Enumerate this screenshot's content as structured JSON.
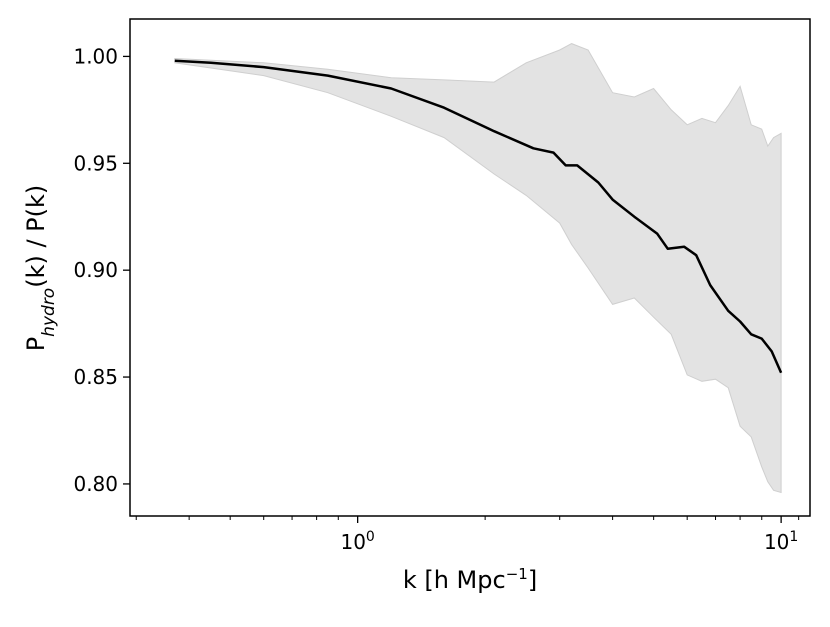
{
  "chart_data": {
    "type": "line",
    "x_scale": "log",
    "xlim": [
      0.29,
      11.7
    ],
    "ylim": [
      0.785,
      1.0175
    ],
    "xlabel": {
      "main": "k [h Mpc",
      "sup": "−1",
      "close": "]"
    },
    "ylabel": {
      "pre": "P",
      "sub": "hydro",
      "post": "(k) / P(k)"
    },
    "x_ticks": [
      {
        "value": 1,
        "base": "10",
        "exp": "0"
      },
      {
        "value": 10,
        "base": "10",
        "exp": "1"
      }
    ],
    "y_ticks": [
      {
        "value": 0.8,
        "label": "0.80"
      },
      {
        "value": 0.85,
        "label": "0.85"
      },
      {
        "value": 0.9,
        "label": "0.90"
      },
      {
        "value": 0.95,
        "label": "0.95"
      },
      {
        "value": 1.0,
        "label": "1.00"
      }
    ],
    "grid": false,
    "line_color": "#000000",
    "band_color": "#e3e3e3",
    "series": [
      {
        "x": [
          0.37,
          0.45,
          0.6,
          0.85,
          1.2,
          1.6,
          2.1,
          2.6,
          2.9,
          3.1,
          3.3,
          3.7,
          4.0,
          4.5,
          5.1,
          5.4,
          5.9,
          6.3,
          6.8,
          7.5,
          8.0,
          8.5,
          9.0,
          9.5,
          10.0
        ],
        "y": [
          0.998,
          0.997,
          0.995,
          0.991,
          0.985,
          0.976,
          0.965,
          0.957,
          0.955,
          0.949,
          0.949,
          0.941,
          0.933,
          0.925,
          0.917,
          0.91,
          0.911,
          0.907,
          0.893,
          0.881,
          0.876,
          0.87,
          0.868,
          0.862,
          0.852
        ]
      }
    ],
    "band": {
      "x": [
        0.37,
        0.6,
        0.85,
        1.2,
        1.6,
        2.1,
        2.5,
        3.0,
        3.2,
        3.5,
        4.0,
        4.5,
        5.0,
        5.5,
        6.0,
        6.5,
        7.0,
        7.5,
        8.0,
        8.5,
        9.0,
        9.3,
        9.6,
        10.0
      ],
      "upper": [
        0.999,
        0.997,
        0.994,
        0.99,
        0.989,
        0.988,
        0.997,
        1.003,
        1.006,
        1.003,
        0.983,
        0.981,
        0.985,
        0.975,
        0.968,
        0.971,
        0.969,
        0.977,
        0.986,
        0.968,
        0.966,
        0.958,
        0.962,
        0.964
      ],
      "lower": [
        0.997,
        0.991,
        0.983,
        0.972,
        0.962,
        0.945,
        0.935,
        0.922,
        0.912,
        0.901,
        0.884,
        0.887,
        0.878,
        0.87,
        0.851,
        0.848,
        0.849,
        0.845,
        0.827,
        0.822,
        0.808,
        0.801,
        0.797,
        0.796
      ]
    }
  }
}
